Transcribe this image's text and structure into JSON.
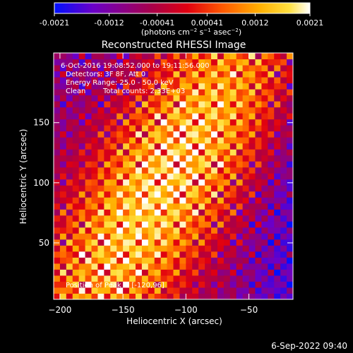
{
  "chart_data": {
    "type": "heatmap",
    "title": "Reconstructed RHESSI Image",
    "xlabel": "Heliocentric X (arcsec)",
    "ylabel": "Heliocentric Y (arcsec)",
    "xlim": [
      -205,
      -15
    ],
    "ylim": [
      3,
      208
    ],
    "x_ticks": [
      -200,
      -150,
      -100,
      -50
    ],
    "y_ticks": [
      50,
      100,
      150
    ],
    "colorbar": {
      "ticks": [
        "-0.0021",
        "-0.0012",
        "-0.00041",
        "0.00041",
        "0.0012",
        "0.0021"
      ],
      "tick_values": [
        -0.0021,
        -0.0012,
        -0.00041,
        0.00041,
        0.0012,
        0.0021
      ],
      "range": [
        -0.0021,
        0.0021
      ],
      "unit_prefix": "(photons cm",
      "unit_exp1": "−2",
      "unit_mid": " s",
      "unit_exp2": "−1",
      "unit_mid2": " asec",
      "unit_exp3": "−2",
      "unit_suffix": ")",
      "colors": [
        "#0010ff",
        "#6a00c8",
        "#a8004a",
        "#e00010",
        "#ff5a00",
        "#ffae00",
        "#ffe040",
        "#ffffff"
      ]
    },
    "annotations": {
      "time_range": "6-Oct-2016 19:08:52.000 to 19:11:56.000",
      "detectors": "Detectors: 3F 8F, Att 0",
      "energy": "Energy Range: 25.0 - 50.0 keV",
      "method": "Clean",
      "counts": "Total counts: 2.33E+03",
      "peak": "Position of Peak = [-120,96]"
    },
    "peak_position": [
      -120,
      96
    ],
    "grid": false
  },
  "footer": {
    "timestamp": "6-Sep-2022 09:40"
  }
}
